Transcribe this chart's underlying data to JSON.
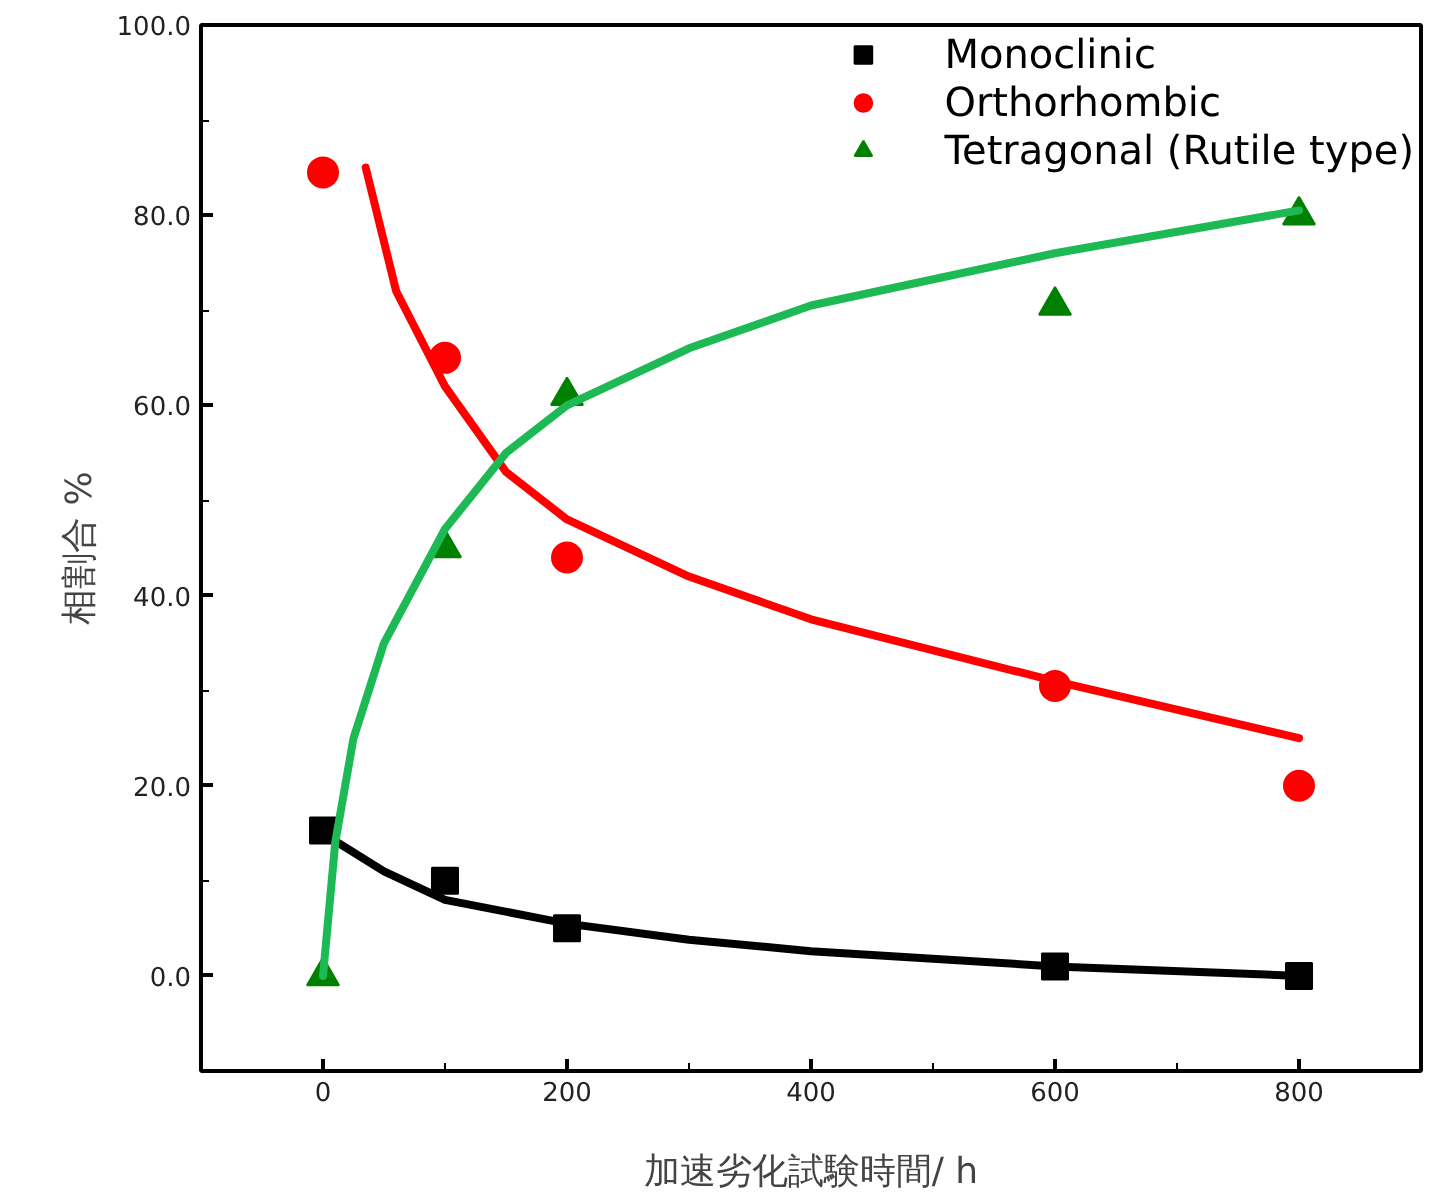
{
  "chart_data": {
    "type": "scatter",
    "xlabel": "加速劣化試験時間/ h",
    "ylabel": "相割合 %",
    "xlim": [
      -100,
      900
    ],
    "ylim": [
      -10,
      100
    ],
    "xticks": [
      0,
      200,
      400,
      600,
      800
    ],
    "yticks": [
      {
        "value": 0,
        "label": "0.0"
      },
      {
        "value": 20,
        "label": "20.0"
      },
      {
        "value": 40,
        "label": "40.0"
      },
      {
        "value": 60,
        "label": "60.0"
      },
      {
        "value": 80,
        "label": "80.0"
      },
      {
        "value": 100,
        "label": "100.0"
      }
    ],
    "grid": false,
    "legend": "top right",
    "series": [
      {
        "name": "Monoclinic",
        "marker": "square",
        "color": "#000000",
        "x": [
          0,
          100,
          200,
          600,
          800
        ],
        "values": [
          15.3,
          10,
          5,
          1,
          0
        ]
      },
      {
        "name": "Orthorhombic",
        "marker": "circle",
        "color": "#ff0000",
        "x": [
          0,
          100,
          200,
          600,
          800
        ],
        "values": [
          84.5,
          65,
          44,
          30.5,
          20
        ]
      },
      {
        "name": "Tetragonal (Rutile type)",
        "marker": "triangle",
        "color": "#008000",
        "x": [
          0,
          100,
          200,
          600,
          800
        ],
        "values": [
          0,
          45,
          61,
          70.5,
          80
        ]
      },
      {
        "type": "line",
        "color": "#000000",
        "x": [
          0,
          50,
          100,
          200,
          300,
          400,
          600,
          800
        ],
        "values": [
          15,
          11,
          8,
          5.5,
          3.8,
          2.6,
          1,
          0
        ]
      },
      {
        "type": "line",
        "color": "#ff0000",
        "x": [
          35,
          60,
          100,
          150,
          200,
          300,
          400,
          600,
          800
        ],
        "values": [
          85,
          72,
          62,
          53,
          48,
          42,
          37.5,
          31,
          25
        ]
      },
      {
        "type": "line",
        "color": "#1db954",
        "x": [
          0,
          10,
          25,
          50,
          100,
          150,
          200,
          300,
          400,
          600,
          800
        ],
        "values": [
          0,
          14,
          25,
          35,
          47,
          55,
          60,
          66,
          70.5,
          76,
          80.5
        ]
      }
    ]
  }
}
